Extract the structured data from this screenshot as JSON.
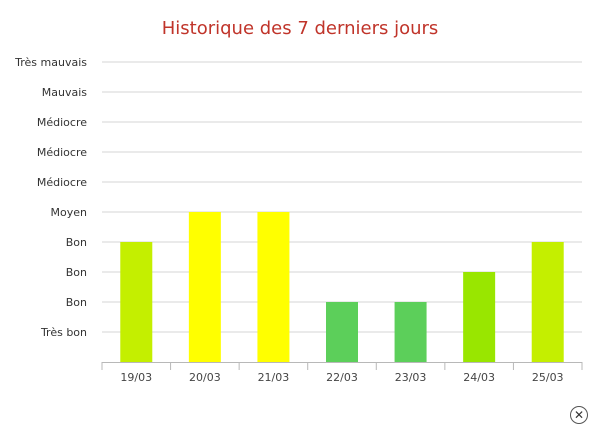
{
  "chart_data": {
    "type": "bar",
    "title": "Historique des 7 derniers jours",
    "categories": [
      "19/03",
      "20/03",
      "21/03",
      "22/03",
      "23/03",
      "24/03",
      "25/03"
    ],
    "values": [
      4,
      5,
      5,
      2,
      2,
      3,
      4
    ],
    "bar_colors": [
      "#c4ef00",
      "#ffff00",
      "#ffff00",
      "#5ccf5a",
      "#5ccf5a",
      "#99e600",
      "#c4ef00"
    ],
    "ytick_labels": [
      "Très bon",
      "Bon",
      "Bon",
      "Bon",
      "Moyen",
      "Médiocre",
      "Médiocre",
      "Médiocre",
      "Mauvais",
      "Très mauvais"
    ],
    "ylim": [
      0,
      10
    ],
    "grid": true,
    "xlabel": "",
    "ylabel": ""
  },
  "close_icon": "✕"
}
